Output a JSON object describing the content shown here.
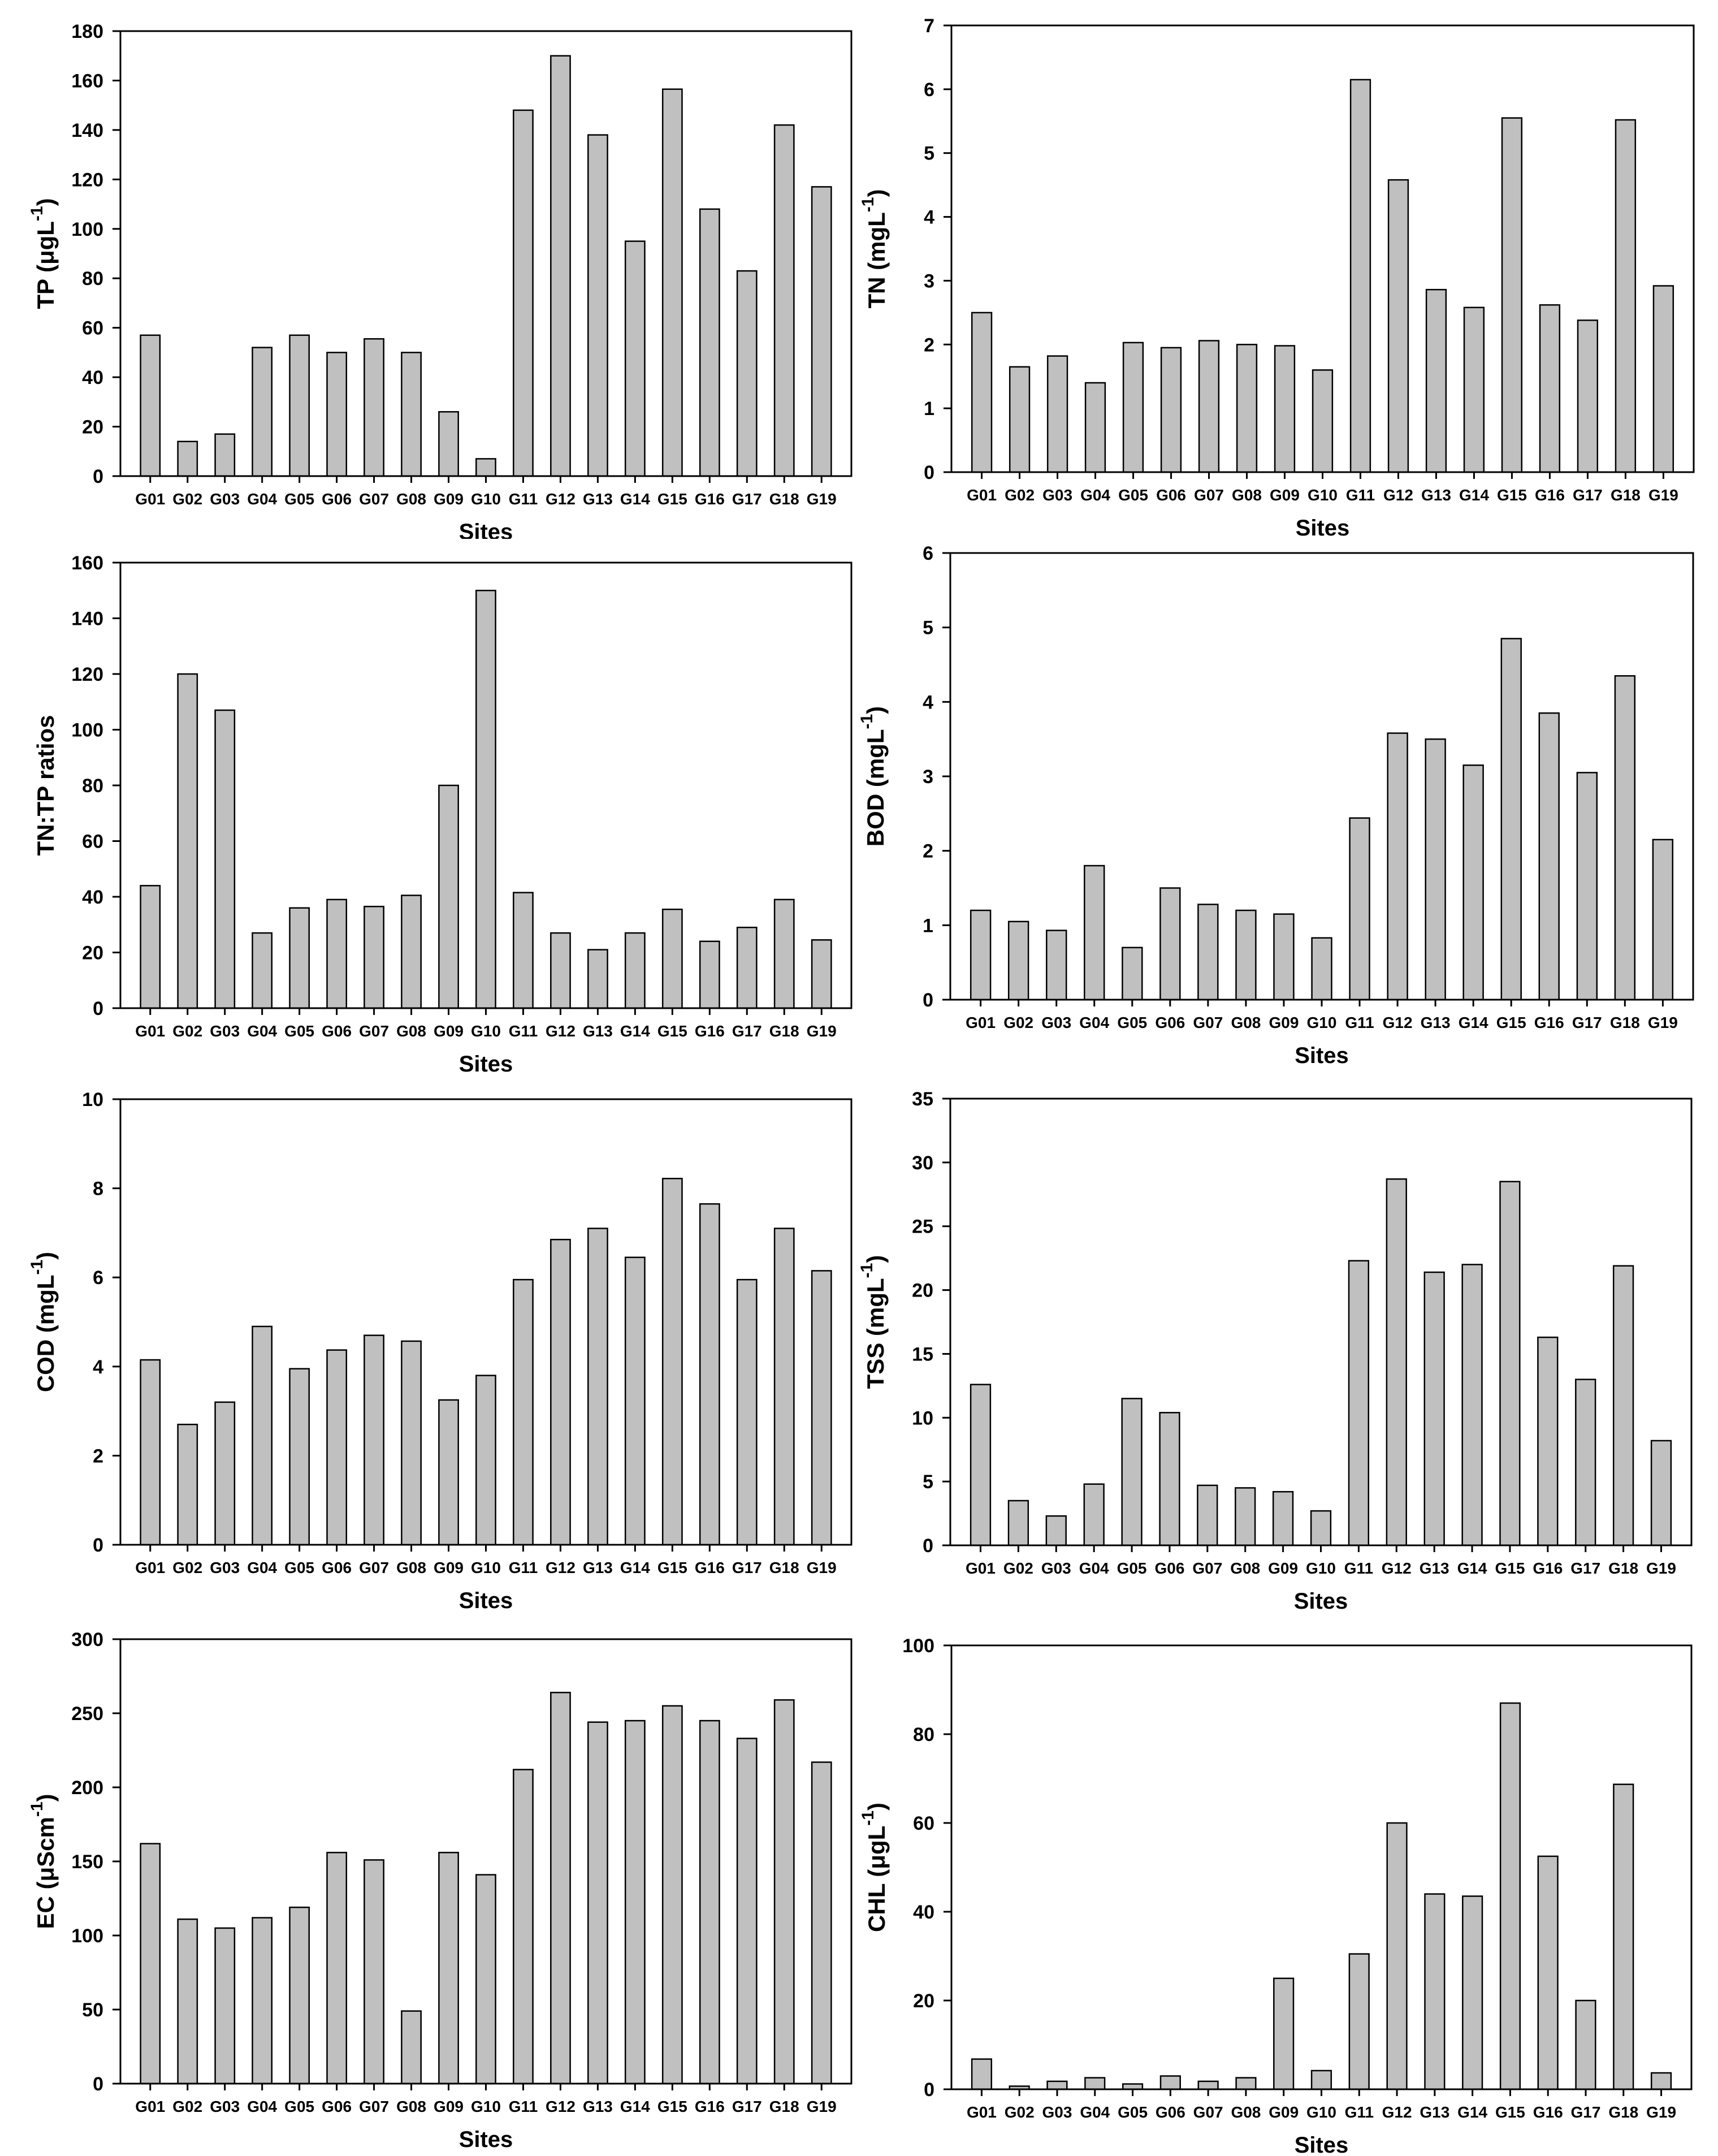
{
  "colors": {
    "bar_fill": "#c0c0c0",
    "bar_stroke": "#000000",
    "background": "#ffffff"
  },
  "chart_data": [
    {
      "id": "tp",
      "type": "bar",
      "categories": [
        "G01",
        "G02",
        "G03",
        "G04",
        "G05",
        "G06",
        "G07",
        "G08",
        "G09",
        "G10",
        "G11",
        "G12",
        "G13",
        "G14",
        "G15",
        "G16",
        "G17",
        "G18",
        "G19"
      ],
      "values": [
        57,
        14,
        17,
        52,
        57,
        50,
        55.5,
        50,
        26,
        7,
        148,
        170,
        138,
        95,
        156.5,
        108,
        83,
        142,
        117
      ],
      "ylabel": "TP (μgL",
      "ylabel_sup": "-1",
      "ylabel_tail": ")",
      "xlabel": "Sites",
      "ylim": [
        0,
        180
      ],
      "yticks": [
        "0",
        "20",
        "40",
        "60",
        "80",
        "100",
        "120",
        "140",
        "160",
        "180"
      ]
    },
    {
      "id": "tn",
      "type": "bar",
      "categories": [
        "G01",
        "G02",
        "G03",
        "G04",
        "G05",
        "G06",
        "G07",
        "G08",
        "G09",
        "G10",
        "G11",
        "G12",
        "G13",
        "G14",
        "G15",
        "G16",
        "G17",
        "G18",
        "G19"
      ],
      "values": [
        2.5,
        1.65,
        1.82,
        1.4,
        2.03,
        1.95,
        2.06,
        2.0,
        1.98,
        1.6,
        6.15,
        4.58,
        2.86,
        2.58,
        5.55,
        2.62,
        2.38,
        5.52,
        2.92
      ],
      "ylabel": "TN (mgL",
      "ylabel_sup": "-1",
      "ylabel_tail": ")",
      "xlabel": "Sites",
      "ylim": [
        0,
        7
      ],
      "yticks": [
        "0",
        "1",
        "2",
        "3",
        "4",
        "5",
        "6",
        "7"
      ]
    },
    {
      "id": "tntp",
      "type": "bar",
      "categories": [
        "G01",
        "G02",
        "G03",
        "G04",
        "G05",
        "G06",
        "G07",
        "G08",
        "G09",
        "G10",
        "G11",
        "G12",
        "G13",
        "G14",
        "G15",
        "G16",
        "G17",
        "G18",
        "G19"
      ],
      "values": [
        44,
        120,
        107,
        27,
        36,
        39,
        36.5,
        40.5,
        80,
        150,
        41.5,
        27,
        21,
        27,
        35.5,
        24,
        29,
        39,
        24.5
      ],
      "ylabel": "TN:TP ratios",
      "ylabel_sup": "",
      "ylabel_tail": "",
      "xlabel": "Sites",
      "ylim": [
        0,
        160
      ],
      "yticks": [
        "0",
        "20",
        "40",
        "60",
        "80",
        "100",
        "120",
        "140",
        "160"
      ]
    },
    {
      "id": "bod",
      "type": "bar",
      "categories": [
        "G01",
        "G02",
        "G03",
        "G04",
        "G05",
        "G06",
        "G07",
        "G08",
        "G09",
        "G10",
        "G11",
        "G12",
        "G13",
        "G14",
        "G15",
        "G16",
        "G17",
        "G18",
        "G19"
      ],
      "values": [
        1.2,
        1.05,
        0.93,
        1.8,
        0.7,
        1.5,
        1.28,
        1.2,
        1.15,
        0.83,
        2.44,
        3.58,
        3.5,
        3.15,
        4.85,
        3.85,
        3.05,
        4.35,
        2.15
      ],
      "ylabel": "BOD (mgL",
      "ylabel_sup": "-1",
      "ylabel_tail": ")",
      "xlabel": "Sites",
      "ylim": [
        0,
        6
      ],
      "yticks": [
        "0",
        "1",
        "2",
        "3",
        "4",
        "5",
        "6"
      ]
    },
    {
      "id": "cod",
      "type": "bar",
      "categories": [
        "G01",
        "G02",
        "G03",
        "G04",
        "G05",
        "G06",
        "G07",
        "G08",
        "G09",
        "G10",
        "G11",
        "G12",
        "G13",
        "G14",
        "G15",
        "G16",
        "G17",
        "G18",
        "G19"
      ],
      "values": [
        4.15,
        2.7,
        3.2,
        4.9,
        3.95,
        4.37,
        4.7,
        4.57,
        3.25,
        3.8,
        5.95,
        6.85,
        7.1,
        6.45,
        8.22,
        7.65,
        5.95,
        7.1,
        6.15
      ],
      "ylabel": "COD (mgL",
      "ylabel_sup": "-1",
      "ylabel_tail": ")",
      "xlabel": "Sites",
      "ylim": [
        0,
        10
      ],
      "yticks": [
        "0",
        "2",
        "4",
        "6",
        "8",
        "10"
      ]
    },
    {
      "id": "tss",
      "type": "bar",
      "categories": [
        "G01",
        "G02",
        "G03",
        "G04",
        "G05",
        "G06",
        "G07",
        "G08",
        "G09",
        "G10",
        "G11",
        "G12",
        "G13",
        "G14",
        "G15",
        "G16",
        "G17",
        "G18",
        "G19"
      ],
      "values": [
        12.6,
        3.5,
        2.3,
        4.8,
        11.5,
        10.4,
        4.7,
        4.5,
        4.2,
        2.7,
        22.3,
        28.7,
        21.4,
        22.0,
        28.5,
        16.3,
        13.0,
        21.9,
        8.2
      ],
      "ylabel": "TSS (mgL",
      "ylabel_sup": "-1",
      "ylabel_tail": ")",
      "xlabel": "Sites",
      "ylim": [
        0,
        35
      ],
      "yticks": [
        "0",
        "5",
        "10",
        "15",
        "20",
        "25",
        "30",
        "35"
      ]
    },
    {
      "id": "ec",
      "type": "bar",
      "categories": [
        "G01",
        "G02",
        "G03",
        "G04",
        "G05",
        "G06",
        "G07",
        "G08",
        "G09",
        "G10",
        "G11",
        "G12",
        "G13",
        "G14",
        "G15",
        "G16",
        "G17",
        "G18",
        "G19"
      ],
      "values": [
        162,
        111,
        105,
        112,
        119,
        156,
        151,
        49,
        156,
        141,
        212,
        264,
        244,
        245,
        255,
        245,
        233,
        259,
        217
      ],
      "ylabel": "EC (μScm",
      "ylabel_sup": "-1",
      "ylabel_tail": ")",
      "xlabel": "Sites",
      "ylim": [
        0,
        300
      ],
      "yticks": [
        "0",
        "50",
        "100",
        "150",
        "200",
        "250",
        "300"
      ]
    },
    {
      "id": "chl",
      "type": "bar",
      "categories": [
        "G01",
        "G02",
        "G03",
        "G04",
        "G05",
        "G06",
        "G07",
        "G08",
        "G09",
        "G10",
        "G11",
        "G12",
        "G13",
        "G14",
        "G15",
        "G16",
        "G17",
        "G18",
        "G19"
      ],
      "values": [
        6.8,
        0.7,
        1.8,
        2.6,
        1.2,
        3.0,
        1.8,
        2.6,
        25,
        4.2,
        30.5,
        60,
        44,
        43.5,
        87,
        52.5,
        20,
        68.7,
        3.7
      ],
      "ylabel": "CHL (μgL",
      "ylabel_sup": "-1",
      "ylabel_tail": ")",
      "xlabel": "Sites",
      "ylim": [
        0,
        100
      ],
      "yticks": [
        "0",
        "20",
        "40",
        "60",
        "80",
        "100"
      ]
    }
  ]
}
